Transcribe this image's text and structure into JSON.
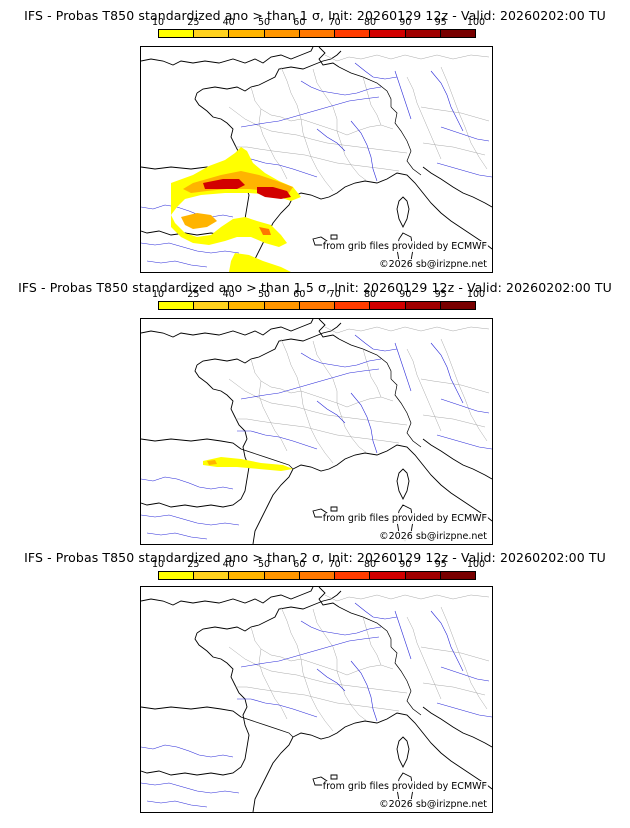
{
  "panels": [
    {
      "title": "IFS - Probas T850  standardized ano > than 1 σ, Init: 20260129 12z - Valid: 20260202:00 TU"
    },
    {
      "title": "IFS - Probas T850  standardized ano > than 1.5 σ, Init: 20260129 12z - Valid: 20260202:00 TU"
    },
    {
      "title": "IFS - Probas T850  standardized ano > than 2 σ, Init: 20260129 12z - Valid: 20260202:00 TU"
    }
  ],
  "scale": {
    "labels": [
      "10",
      "25",
      "40",
      "50",
      "60",
      "70",
      "80",
      "90",
      "95",
      "100"
    ],
    "colors": [
      "#ffff00",
      "#ffd21e",
      "#ffb400",
      "#ff9600",
      "#ff7800",
      "#ff3c00",
      "#d20000",
      "#a00000",
      "#780000"
    ]
  },
  "credits": {
    "grib": "from grib files provided by ECMWF",
    "copyright": "©2026 sb@irizpne.net"
  },
  "colors": {
    "coast": "#000000",
    "rivers": "#2b2bd9",
    "borders": "#aaaaaa"
  }
}
